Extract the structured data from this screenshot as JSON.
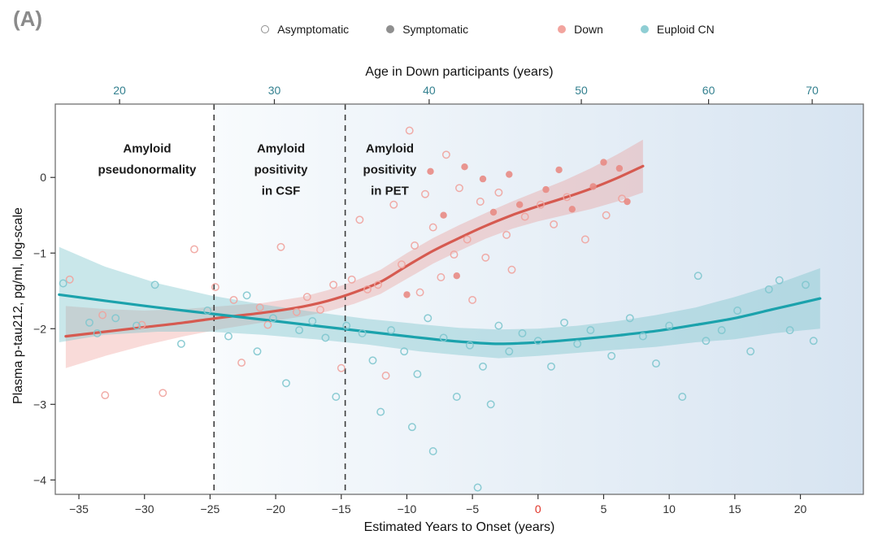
{
  "panel_label": "(A)",
  "legend": {
    "symptom_items": [
      {
        "label": "Asymptomatic",
        "marker": "open",
        "color": "#8f8f8f"
      },
      {
        "label": "Symptomatic",
        "marker": "filled",
        "color": "#8f8f8f"
      }
    ],
    "group_items": [
      {
        "label": "Down",
        "marker": "filled",
        "color": "#f2a49e"
      },
      {
        "label": "Euploid CN",
        "marker": "filled",
        "color": "#8fced4"
      }
    ]
  },
  "chart_data": {
    "type": "scatter",
    "title": "",
    "xlabel": "Estimated Years to Onset (years)",
    "ylabel": "Plasma p-tau212, pg/ml, log-scale",
    "xlim": [
      -36.8,
      24.8
    ],
    "ylim": [
      -4.19,
      0.97
    ],
    "x_ticks": [
      -35,
      -30,
      -25,
      -20,
      -15,
      -10,
      -5,
      0,
      5,
      10,
      15,
      20
    ],
    "y_ticks": [
      0,
      -1,
      -2,
      -3,
      -4
    ],
    "zero_tick_color": "#e03428",
    "tick_color": "#333333",
    "grid": false,
    "legend_position": "top",
    "top_axis": {
      "label": "Age in Down participants (years)",
      "tick_color": "#33808f",
      "ticks": [
        [
          20,
          -31.9
        ],
        [
          30,
          -20.1
        ],
        [
          40,
          -8.3
        ],
        [
          50,
          3.3
        ],
        [
          60,
          13.0
        ],
        [
          70,
          20.9
        ]
      ]
    },
    "dashed_lines_x": [
      -24.7,
      -14.7
    ],
    "background": {
      "shade_start_x": -24.7,
      "gradient": [
        "#f8fbfd",
        "#d7e4f1"
      ]
    },
    "annotations": [
      {
        "text": [
          "Amyloid",
          "pseudonormality"
        ],
        "x": -29.8,
        "y": 0.33
      },
      {
        "text": [
          "Amyloid",
          "positivity",
          "in CSF"
        ],
        "x": -19.6,
        "y": 0.33
      },
      {
        "text": [
          "Amyloid",
          "positivity",
          "in PET"
        ],
        "x": -11.3,
        "y": 0.33
      }
    ],
    "series": [
      {
        "name": "Down asymptomatic",
        "group": "Down",
        "marker": "open",
        "color": "#f0a39d",
        "points": [
          [
            -35.7,
            -1.35
          ],
          [
            -33.2,
            -1.82
          ],
          [
            -33.0,
            -2.88
          ],
          [
            -30.2,
            -1.95
          ],
          [
            -28.6,
            -2.85
          ],
          [
            -26.2,
            -0.95
          ],
          [
            -24.6,
            -1.45
          ],
          [
            -23.2,
            -1.62
          ],
          [
            -22.6,
            -2.45
          ],
          [
            -21.2,
            -1.72
          ],
          [
            -20.6,
            -1.95
          ],
          [
            -19.6,
            -0.92
          ],
          [
            -18.4,
            -1.78
          ],
          [
            -17.6,
            -1.58
          ],
          [
            -16.6,
            -1.75
          ],
          [
            -15.6,
            -1.42
          ],
          [
            -15.0,
            -2.52
          ],
          [
            -14.2,
            -1.35
          ],
          [
            -13.6,
            -0.56
          ],
          [
            -13.0,
            -1.48
          ],
          [
            -12.2,
            -1.42
          ],
          [
            -11.6,
            -2.62
          ],
          [
            -11.0,
            -0.36
          ],
          [
            -10.4,
            -1.15
          ],
          [
            -9.8,
            0.62
          ],
          [
            -9.4,
            -0.9
          ],
          [
            -9.0,
            -1.52
          ],
          [
            -8.6,
            -0.22
          ],
          [
            -8.0,
            -0.66
          ],
          [
            -7.4,
            -1.32
          ],
          [
            -7.0,
            0.3
          ],
          [
            -6.4,
            -1.02
          ],
          [
            -6.0,
            -0.14
          ],
          [
            -5.4,
            -0.82
          ],
          [
            -5.0,
            -1.62
          ],
          [
            -4.4,
            -0.32
          ],
          [
            -4.0,
            -1.06
          ],
          [
            -3.0,
            -0.2
          ],
          [
            -2.4,
            -0.76
          ],
          [
            -2.0,
            -1.22
          ],
          [
            -1.0,
            -0.52
          ],
          [
            0.2,
            -0.36
          ],
          [
            1.2,
            -0.62
          ],
          [
            2.2,
            -0.26
          ],
          [
            3.6,
            -0.82
          ],
          [
            5.2,
            -0.5
          ],
          [
            6.4,
            -0.28
          ]
        ]
      },
      {
        "name": "Down symptomatic",
        "group": "Down",
        "marker": "filled",
        "color": "#e88b84",
        "points": [
          [
            -10.0,
            -1.55
          ],
          [
            -8.2,
            0.08
          ],
          [
            -7.2,
            -0.5
          ],
          [
            -6.2,
            -1.3
          ],
          [
            -5.6,
            0.14
          ],
          [
            -4.2,
            -0.02
          ],
          [
            -3.4,
            -0.46
          ],
          [
            -2.2,
            0.04
          ],
          [
            -1.4,
            -0.36
          ],
          [
            0.6,
            -0.16
          ],
          [
            1.6,
            0.1
          ],
          [
            2.6,
            -0.42
          ],
          [
            4.2,
            -0.12
          ],
          [
            5.0,
            0.2
          ],
          [
            6.2,
            0.12
          ],
          [
            6.8,
            -0.32
          ]
        ]
      },
      {
        "name": "Euploid CN asymptomatic",
        "group": "Euploid CN",
        "marker": "open",
        "color": "#7fc7ce",
        "points": [
          [
            -36.2,
            -1.4
          ],
          [
            -34.2,
            -1.92
          ],
          [
            -33.6,
            -2.06
          ],
          [
            -32.2,
            -1.86
          ],
          [
            -30.6,
            -1.96
          ],
          [
            -29.2,
            -1.42
          ],
          [
            -27.2,
            -2.2
          ],
          [
            -25.2,
            -1.76
          ],
          [
            -23.6,
            -2.1
          ],
          [
            -22.2,
            -1.56
          ],
          [
            -21.4,
            -2.3
          ],
          [
            -20.2,
            -1.86
          ],
          [
            -19.2,
            -2.72
          ],
          [
            -18.2,
            -2.02
          ],
          [
            -17.2,
            -1.9
          ],
          [
            -16.2,
            -2.12
          ],
          [
            -15.4,
            -2.9
          ],
          [
            -14.6,
            -1.96
          ],
          [
            -13.4,
            -2.06
          ],
          [
            -12.6,
            -2.42
          ],
          [
            -12.0,
            -3.1
          ],
          [
            -11.2,
            -2.02
          ],
          [
            -10.2,
            -2.3
          ],
          [
            -9.6,
            -3.3
          ],
          [
            -9.2,
            -2.6
          ],
          [
            -8.4,
            -1.86
          ],
          [
            -8.0,
            -3.62
          ],
          [
            -7.2,
            -2.12
          ],
          [
            -6.2,
            -2.9
          ],
          [
            -5.2,
            -2.22
          ],
          [
            -4.6,
            -4.1
          ],
          [
            -4.2,
            -2.5
          ],
          [
            -3.6,
            -3.0
          ],
          [
            -3.0,
            -1.96
          ],
          [
            -2.2,
            -2.3
          ],
          [
            -1.2,
            -2.06
          ],
          [
            0.0,
            -2.16
          ],
          [
            1.0,
            -2.5
          ],
          [
            2.0,
            -1.92
          ],
          [
            3.0,
            -2.2
          ],
          [
            4.0,
            -2.02
          ],
          [
            5.6,
            -2.36
          ],
          [
            7.0,
            -1.86
          ],
          [
            8.0,
            -2.1
          ],
          [
            9.0,
            -2.46
          ],
          [
            10.0,
            -1.96
          ],
          [
            11.0,
            -2.9
          ],
          [
            12.2,
            -1.3
          ],
          [
            12.8,
            -2.16
          ],
          [
            14.0,
            -2.02
          ],
          [
            15.2,
            -1.76
          ],
          [
            16.2,
            -2.3
          ],
          [
            17.6,
            -1.48
          ],
          [
            18.4,
            -1.36
          ],
          [
            19.2,
            -2.02
          ],
          [
            20.4,
            -1.42
          ],
          [
            21.0,
            -2.16
          ]
        ]
      },
      {
        "name": "Euploid CN symptomatic",
        "group": "Euploid CN",
        "marker": "filled",
        "color": "#4fb3bc",
        "points": []
      }
    ],
    "smooths": [
      {
        "name": "Down fit",
        "color": "#d65a50",
        "band_color": "rgba(232,125,117,0.28)",
        "x": [
          -36,
          -33,
          -30,
          -27,
          -24,
          -21,
          -18,
          -16,
          -14,
          -12,
          -10,
          -8,
          -6,
          -4,
          -2,
          0,
          2,
          4,
          6,
          8
        ],
        "y": [
          -2.1,
          -2.04,
          -1.98,
          -1.92,
          -1.85,
          -1.79,
          -1.71,
          -1.63,
          -1.52,
          -1.38,
          -1.17,
          -0.97,
          -0.8,
          -0.64,
          -0.5,
          -0.38,
          -0.27,
          -0.15,
          -0.01,
          0.15
        ],
        "upper": [
          -1.7,
          -1.74,
          -1.76,
          -1.74,
          -1.7,
          -1.66,
          -1.58,
          -1.49,
          -1.37,
          -1.22,
          -1.0,
          -0.8,
          -0.63,
          -0.47,
          -0.32,
          -0.18,
          -0.04,
          0.12,
          0.3,
          0.5
        ],
        "lower": [
          -2.52,
          -2.36,
          -2.22,
          -2.1,
          -2.0,
          -1.92,
          -1.84,
          -1.77,
          -1.67,
          -1.54,
          -1.34,
          -1.14,
          -0.97,
          -0.81,
          -0.68,
          -0.58,
          -0.5,
          -0.42,
          -0.32,
          -0.2
        ]
      },
      {
        "name": "Euploid CN fit",
        "color": "#1ba2ac",
        "band_color": "rgba(121,196,203,0.40)",
        "x": [
          -36.5,
          -33,
          -29,
          -25,
          -21,
          -17,
          -13,
          -9,
          -6,
          -3,
          0,
          3,
          6,
          9,
          12,
          15,
          18,
          21.5
        ],
        "y": [
          -1.55,
          -1.63,
          -1.72,
          -1.8,
          -1.88,
          -1.96,
          -2.04,
          -2.12,
          -2.17,
          -2.2,
          -2.18,
          -2.14,
          -2.09,
          -2.03,
          -1.95,
          -1.86,
          -1.74,
          -1.6
        ],
        "upper": [
          -0.92,
          -1.18,
          -1.4,
          -1.56,
          -1.68,
          -1.78,
          -1.87,
          -1.94,
          -1.99,
          -2.01,
          -2.0,
          -1.96,
          -1.9,
          -1.82,
          -1.72,
          -1.58,
          -1.42,
          -1.2
        ],
        "lower": [
          -2.18,
          -2.08,
          -2.04,
          -2.04,
          -2.08,
          -2.14,
          -2.21,
          -2.3,
          -2.35,
          -2.39,
          -2.36,
          -2.32,
          -2.28,
          -2.24,
          -2.18,
          -2.14,
          -2.06,
          -2.0
        ]
      }
    ]
  }
}
